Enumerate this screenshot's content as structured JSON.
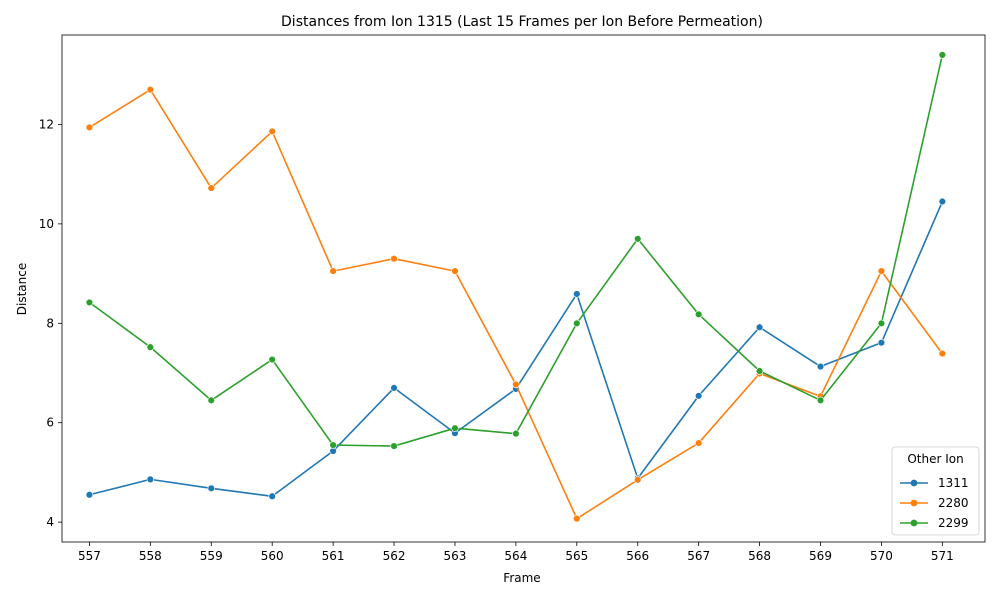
{
  "chart_data": {
    "type": "line",
    "title": "Distances from Ion 1315 (Last 15 Frames per Ion Before Permeation)",
    "xlabel": "Frame",
    "ylabel": "Distance",
    "x": [
      557,
      558,
      559,
      560,
      561,
      562,
      563,
      564,
      565,
      566,
      567,
      568,
      569,
      570,
      571
    ],
    "xlim": [
      556.55,
      571.7
    ],
    "ylim": [
      3.6,
      13.8
    ],
    "yticks": [
      4,
      6,
      8,
      10,
      12
    ],
    "legend": {
      "title": "Other Ion",
      "placement": "lower-right"
    },
    "grid": false,
    "series": [
      {
        "name": "1311",
        "color": "#1f77b4",
        "values": [
          4.55,
          4.86,
          4.68,
          4.52,
          5.43,
          6.7,
          5.79,
          6.68,
          8.59,
          4.88,
          6.54,
          7.92,
          7.13,
          7.61,
          10.45
        ]
      },
      {
        "name": "2280",
        "color": "#ff7f0e",
        "values": [
          11.94,
          12.7,
          10.72,
          11.86,
          9.05,
          9.3,
          9.05,
          6.77,
          4.07,
          4.85,
          5.59,
          6.99,
          6.53,
          9.05,
          7.39
        ]
      },
      {
        "name": "2299",
        "color": "#2ca02c",
        "values": [
          8.42,
          7.52,
          6.45,
          7.27,
          5.55,
          5.53,
          5.89,
          5.78,
          8.0,
          9.7,
          8.18,
          7.04,
          6.45,
          8.0,
          13.4
        ]
      }
    ]
  }
}
